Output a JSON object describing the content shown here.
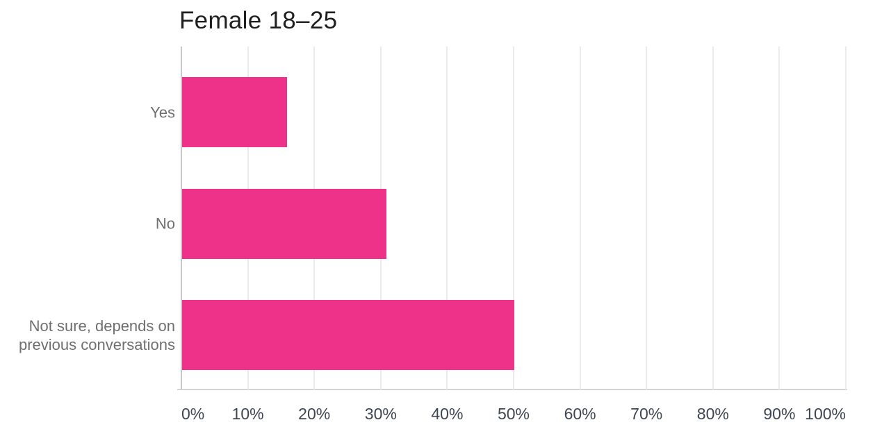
{
  "chart_data": {
    "type": "bar",
    "orientation": "horizontal",
    "title": "Female 18–25",
    "categories": [
      "Yes",
      "No",
      "Not sure, depends on previous conversations"
    ],
    "values": [
      15.8,
      30.8,
      50
    ],
    "value_unit": "%",
    "xlim": [
      0,
      100
    ],
    "x_tick_step": 10,
    "x_tick_labels": [
      "0%",
      "10%",
      "20%",
      "30%",
      "40%",
      "50%",
      "60%",
      "70%",
      "80%",
      "90%",
      "100%"
    ],
    "grid": "vertical-only",
    "legend": "none",
    "xlabel": "",
    "ylabel": ""
  },
  "colors": {
    "background": "#ffffff",
    "bar": "#ee3189",
    "gridline": "#ebebeb",
    "zero_line": "#c9c9c9",
    "axis_line": "#d4d4d4",
    "title_text": "#1f1f1f",
    "category_text": "#6f6f6f",
    "tick_text": "#3d4652"
  }
}
